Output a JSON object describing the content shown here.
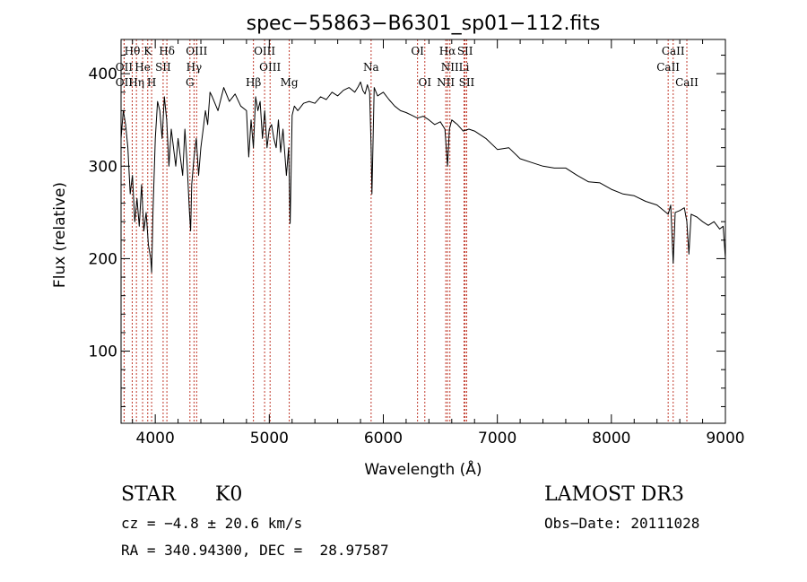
{
  "chart_data": {
    "type": "line",
    "title": "spec−55863−B6301_sp01−112.fits",
    "xlabel": "Wavelength (Å)",
    "ylabel": "Flux (relative)",
    "xlim": [
      3700,
      9000
    ],
    "ylim": [
      22,
      437
    ],
    "xticks": [
      4000,
      5000,
      6000,
      7000,
      8000,
      9000
    ],
    "xtick_labels": [
      "4000",
      "5000",
      "6000",
      "7000",
      "8000",
      "9000"
    ],
    "yticks": [
      100,
      200,
      300,
      400
    ],
    "ytick_labels": [
      "100",
      "200",
      "300",
      "400"
    ],
    "series": [
      {
        "name": "flux",
        "x": [
          3700,
          3720,
          3740,
          3760,
          3780,
          3800,
          3820,
          3840,
          3860,
          3880,
          3900,
          3920,
          3940,
          3960,
          3968,
          3980,
          4000,
          4020,
          4040,
          4060,
          4080,
          4100,
          4120,
          4140,
          4160,
          4180,
          4200,
          4220,
          4240,
          4260,
          4280,
          4300,
          4310,
          4320,
          4340,
          4360,
          4380,
          4400,
          4420,
          4440,
          4460,
          4480,
          4500,
          4550,
          4600,
          4650,
          4700,
          4750,
          4800,
          4820,
          4840,
          4861,
          4880,
          4900,
          4920,
          4940,
          4960,
          4980,
          5000,
          5020,
          5040,
          5060,
          5080,
          5100,
          5120,
          5150,
          5170,
          5183,
          5200,
          5220,
          5250,
          5300,
          5350,
          5400,
          5450,
          5500,
          5550,
          5600,
          5650,
          5700,
          5750,
          5780,
          5800,
          5820,
          5840,
          5860,
          5880,
          5893,
          5900,
          5920,
          5950,
          6000,
          6050,
          6100,
          6150,
          6200,
          6250,
          6300,
          6350,
          6400,
          6450,
          6500,
          6540,
          6563,
          6580,
          6600,
          6650,
          6700,
          6750,
          6800,
          6900,
          7000,
          7100,
          7200,
          7300,
          7400,
          7500,
          7600,
          7700,
          7800,
          7900,
          8000,
          8100,
          8200,
          8300,
          8400,
          8498,
          8520,
          8542,
          8560,
          8600,
          8640,
          8662,
          8680,
          8700,
          8750,
          8800,
          8850,
          8900,
          8950,
          8980,
          9000
        ],
        "y": [
          330,
          360,
          345,
          320,
          270,
          290,
          240,
          265,
          235,
          280,
          230,
          250,
          215,
          200,
          185,
          250,
          330,
          370,
          360,
          330,
          375,
          350,
          300,
          340,
          320,
          300,
          330,
          310,
          290,
          340,
          300,
          250,
          230,
          280,
          310,
          330,
          290,
          320,
          340,
          360,
          345,
          380,
          375,
          360,
          385,
          370,
          378,
          365,
          360,
          310,
          350,
          320,
          375,
          360,
          370,
          330,
          360,
          320,
          340,
          345,
          330,
          320,
          350,
          315,
          340,
          290,
          320,
          238,
          355,
          365,
          360,
          368,
          370,
          368,
          375,
          372,
          380,
          376,
          382,
          385,
          380,
          386,
          391,
          382,
          378,
          388,
          380,
          320,
          270,
          385,
          376,
          380,
          372,
          365,
          360,
          358,
          355,
          352,
          354,
          350,
          345,
          348,
          340,
          300,
          340,
          350,
          345,
          338,
          340,
          338,
          330,
          318,
          320,
          308,
          304,
          300,
          298,
          298,
          290,
          283,
          282,
          275,
          270,
          268,
          262,
          258,
          248,
          258,
          195,
          250,
          252,
          255,
          240,
          205,
          248,
          245,
          240,
          236,
          240,
          232,
          235,
          200
        ]
      }
    ],
    "lines": [
      {
        "name": "Hθ",
        "x": 3798,
        "row": 0
      },
      {
        "name": "K",
        "x": 3934,
        "row": 0
      },
      {
        "name": "Hδ",
        "x": 4102,
        "row": 0
      },
      {
        "name": "OII",
        "x": 3727,
        "row": 1
      },
      {
        "name": "He",
        "x": 3889,
        "row": 1
      },
      {
        "name": "SII",
        "x": 4069,
        "row": 1
      },
      {
        "name": "OIII",
        "x": 4363,
        "row": 0
      },
      {
        "name": "Hγ",
        "x": 4340,
        "row": 1
      },
      {
        "name": "OIII",
        "x": 4959,
        "row": 0
      },
      {
        "name": "OIII",
        "x": 5007,
        "row": 1
      },
      {
        "name": "OII",
        "x": 3727,
        "row": 2
      },
      {
        "name": "Hη",
        "x": 3835,
        "row": 2
      },
      {
        "name": "H",
        "x": 3968,
        "row": 2
      },
      {
        "name": "G",
        "x": 4304,
        "row": 2
      },
      {
        "name": "Hβ",
        "x": 4861,
        "row": 2
      },
      {
        "name": "Mg",
        "x": 5175,
        "row": 2
      },
      {
        "name": "Na",
        "x": 5893,
        "row": 1
      },
      {
        "name": "OI",
        "x": 6300,
        "row": 0
      },
      {
        "name": "OI",
        "x": 6364,
        "row": 2
      },
      {
        "name": "Hα",
        "x": 6563,
        "row": 0
      },
      {
        "name": "NII",
        "x": 6584,
        "row": 1
      },
      {
        "name": "NII",
        "x": 6548,
        "row": 2
      },
      {
        "name": "SII",
        "x": 6717,
        "row": 0
      },
      {
        "name": "Li",
        "x": 6708,
        "row": 1
      },
      {
        "name": "SII",
        "x": 6731,
        "row": 2
      },
      {
        "name": "CaII",
        "x": 8542,
        "row": 0
      },
      {
        "name": "CaII",
        "x": 8498,
        "row": 1
      },
      {
        "name": "CaII",
        "x": 8662,
        "row": 2
      }
    ]
  },
  "info": {
    "class_label": "STAR",
    "subclass": "K0",
    "survey": "LAMOST DR3",
    "cz_text": "cz = −4.8 ± 20.6 km/s",
    "obs_date_text": "Obs−Date: 20111028",
    "radec_text": "RA = 340.94300, DEC =  28.97587"
  },
  "colors": {
    "spectrum": "#000000",
    "line_markers": "#c0392b",
    "axes": "#000000"
  }
}
